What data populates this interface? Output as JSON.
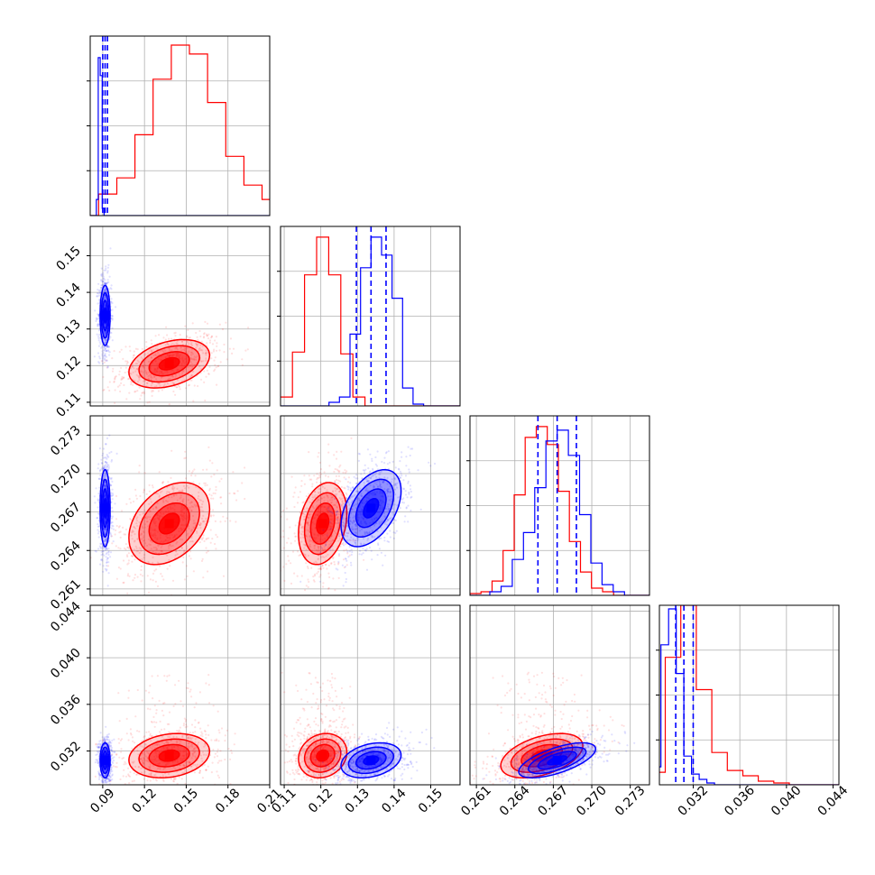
{
  "chart_data": {
    "type": "corner",
    "title": "",
    "grid": true,
    "series": [
      {
        "color": "#0000ff",
        "note_marginal_quantiles_shown": "dashed lines"
      },
      {
        "color": "#ff0000"
      }
    ],
    "parameters": [
      {
        "range": [
          0.081,
          0.21
        ],
        "ticks": [
          0.09,
          0.12,
          0.15,
          0.18,
          0.21
        ],
        "tick_labels": [
          "0.09",
          "0.12",
          "0.15",
          "0.18",
          "0.21"
        ]
      },
      {
        "range": [
          0.109,
          0.158
        ],
        "ticks": [
          0.11,
          0.12,
          0.13,
          0.14,
          0.15
        ],
        "tick_labels": [
          "0.11",
          "0.12",
          "0.13",
          "0.14",
          "0.15"
        ]
      },
      {
        "range": [
          0.2605,
          0.2745
        ],
        "ticks": [
          0.261,
          0.264,
          0.267,
          0.27,
          0.273
        ],
        "tick_labels": [
          "0.261",
          "0.264",
          "0.267",
          "0.270",
          "0.273"
        ]
      },
      {
        "range": [
          0.0291,
          0.0445
        ],
        "ticks": [
          0.032,
          0.036,
          0.04,
          0.044
        ],
        "tick_labels": [
          "0.032",
          "0.036",
          "0.040",
          "0.044"
        ]
      }
    ],
    "blue": {
      "means": [
        0.0917,
        0.1337,
        0.2673,
        0.0312
      ],
      "sigmas": [
        0.0018,
        0.0041,
        0.0015,
        0.00075
      ],
      "corr": {
        "0-1": 0.0,
        "0-2": 0.0,
        "0-3": 0.0,
        "1-2": 0.45,
        "1-3": 0.3,
        "2-3": 0.65
      },
      "quantiles": [
        [
          0.09,
          0.0917,
          0.0934
        ],
        [
          0.1297,
          0.1337,
          0.1378
        ],
        [
          0.2658,
          0.2673,
          0.2688
        ],
        [
          0.0305,
          0.0312,
          0.032
        ]
      ],
      "hist_values": [
        [
          0.09,
          0.88,
          0.78,
          0.04,
          0.0,
          0.0,
          0.0,
          0.0,
          0.0
        ],
        [
          0.0,
          0.02,
          0.05,
          0.4,
          0.77,
          0.94,
          0.84,
          0.6,
          0.1,
          0.01
        ],
        [
          0.02,
          0.05,
          0.2,
          0.35,
          0.6,
          0.86,
          0.92,
          0.78,
          0.45,
          0.18,
          0.06,
          0.02
        ],
        [
          0.1,
          0.78,
          0.98,
          0.62,
          0.16,
          0.06,
          0.03,
          0.01
        ]
      ]
    },
    "red": {
      "means": [
        0.1378,
        0.1205,
        0.2661,
        0.0316
      ],
      "sigmas": [
        0.0145,
        0.0033,
        0.0016,
        0.00095
      ],
      "corr": {
        "0-1": 0.35,
        "0-2": 0.35,
        "0-3": 0.2,
        "1-2": 0.25,
        "1-3": 0.15,
        "2-3": 0.45
      },
      "hist_values": [
        [
          0.12,
          0.21,
          0.45,
          0.76,
          0.95,
          0.9,
          0.63,
          0.33,
          0.17,
          0.09,
          0.05,
          0.03,
          0.02,
          0.01
        ],
        [
          0.05,
          0.3,
          0.73,
          0.94,
          0.73,
          0.29,
          0.05
        ],
        [
          0.01,
          0.02,
          0.08,
          0.25,
          0.56,
          0.88,
          0.94,
          0.84,
          0.58,
          0.3,
          0.13,
          0.04,
          0.02
        ],
        [
          0.07,
          0.71,
          1.0,
          0.53,
          0.18,
          0.08,
          0.05,
          0.02,
          0.01
        ]
      ]
    }
  }
}
